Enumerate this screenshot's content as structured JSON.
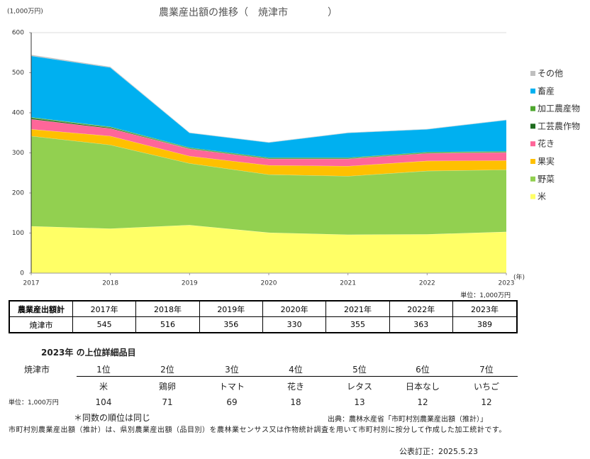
{
  "chart_data": {
    "type": "stacked-area",
    "title": "農業産出額の推移（　焼津市　　　　）",
    "ylabel": "(1,000万円)",
    "xlabel": "(年)",
    "x": [
      2017,
      2018,
      2019,
      2020,
      2021,
      2022,
      2023
    ],
    "xlim": [
      2017,
      2023
    ],
    "xticks": [
      2017,
      2018,
      2019,
      2020,
      2021,
      2022,
      2023
    ],
    "ylim": [
      0,
      600
    ],
    "yticks": [
      0,
      100,
      200,
      300,
      400,
      500,
      600
    ],
    "legend": "right",
    "series": [
      {
        "name": "米",
        "color": "#ffff66",
        "values": [
          117,
          111,
          120,
          101,
          96,
          97,
          103
        ]
      },
      {
        "name": "野菜",
        "color": "#92d050",
        "values": [
          225,
          209,
          154,
          145,
          146,
          158,
          155
        ]
      },
      {
        "name": "果実",
        "color": "#ffc000",
        "values": [
          17,
          22,
          18,
          23,
          25,
          25,
          23
        ]
      },
      {
        "name": "花き",
        "color": "#ff6699",
        "values": [
          25,
          19,
          18,
          16,
          18,
          19,
          20
        ]
      },
      {
        "name": "工芸農作物",
        "color": "#1e6b1e",
        "values": [
          3,
          2,
          1,
          1,
          1,
          1,
          1
        ]
      },
      {
        "name": "加工農産物",
        "color": "#4ea72e",
        "values": [
          2,
          2,
          2,
          2,
          2,
          2,
          2
        ]
      },
      {
        "name": "畜産",
        "color": "#00b0f0",
        "values": [
          153,
          148,
          37,
          38,
          62,
          57,
          78
        ]
      },
      {
        "name": "その他",
        "color": "#bfbfbf",
        "values": [
          3,
          2,
          1,
          1,
          1,
          1,
          1
        ]
      }
    ]
  },
  "totals": {
    "unit": "単位：1,000万円",
    "header": "農業産出額計",
    "years": [
      "2017年",
      "2018年",
      "2019年",
      "2020年",
      "2021年",
      "2022年",
      "2023年"
    ],
    "row_label": "焼津市",
    "values": [
      545,
      516,
      356,
      330,
      355,
      363,
      389
    ]
  },
  "ranking": {
    "title": "2023年 の上位詳細品目",
    "row_label": "焼津市",
    "unit": "単位：1,000万円",
    "ranks": [
      "1位",
      "2位",
      "3位",
      "4位",
      "5位",
      "6位",
      "7位"
    ],
    "items": [
      "米",
      "鶏卵",
      "トマト",
      "花き",
      "レタス",
      "日本なし",
      "いちご"
    ],
    "values": [
      104,
      71,
      69,
      18,
      13,
      12,
      12
    ]
  },
  "notes": {
    "same_rank": "＊同数の順位は同じ",
    "source": "出典：農林水産省「市町村別農業産出額（推計）」",
    "description": "市町村別農業産出額（推計）は、県別農業産出額（品目別）を農林業センサス又は作物統計調査を用いて市町村別に按分して作成した加工統計です。",
    "revised": "公表訂正：2025.5.23"
  }
}
